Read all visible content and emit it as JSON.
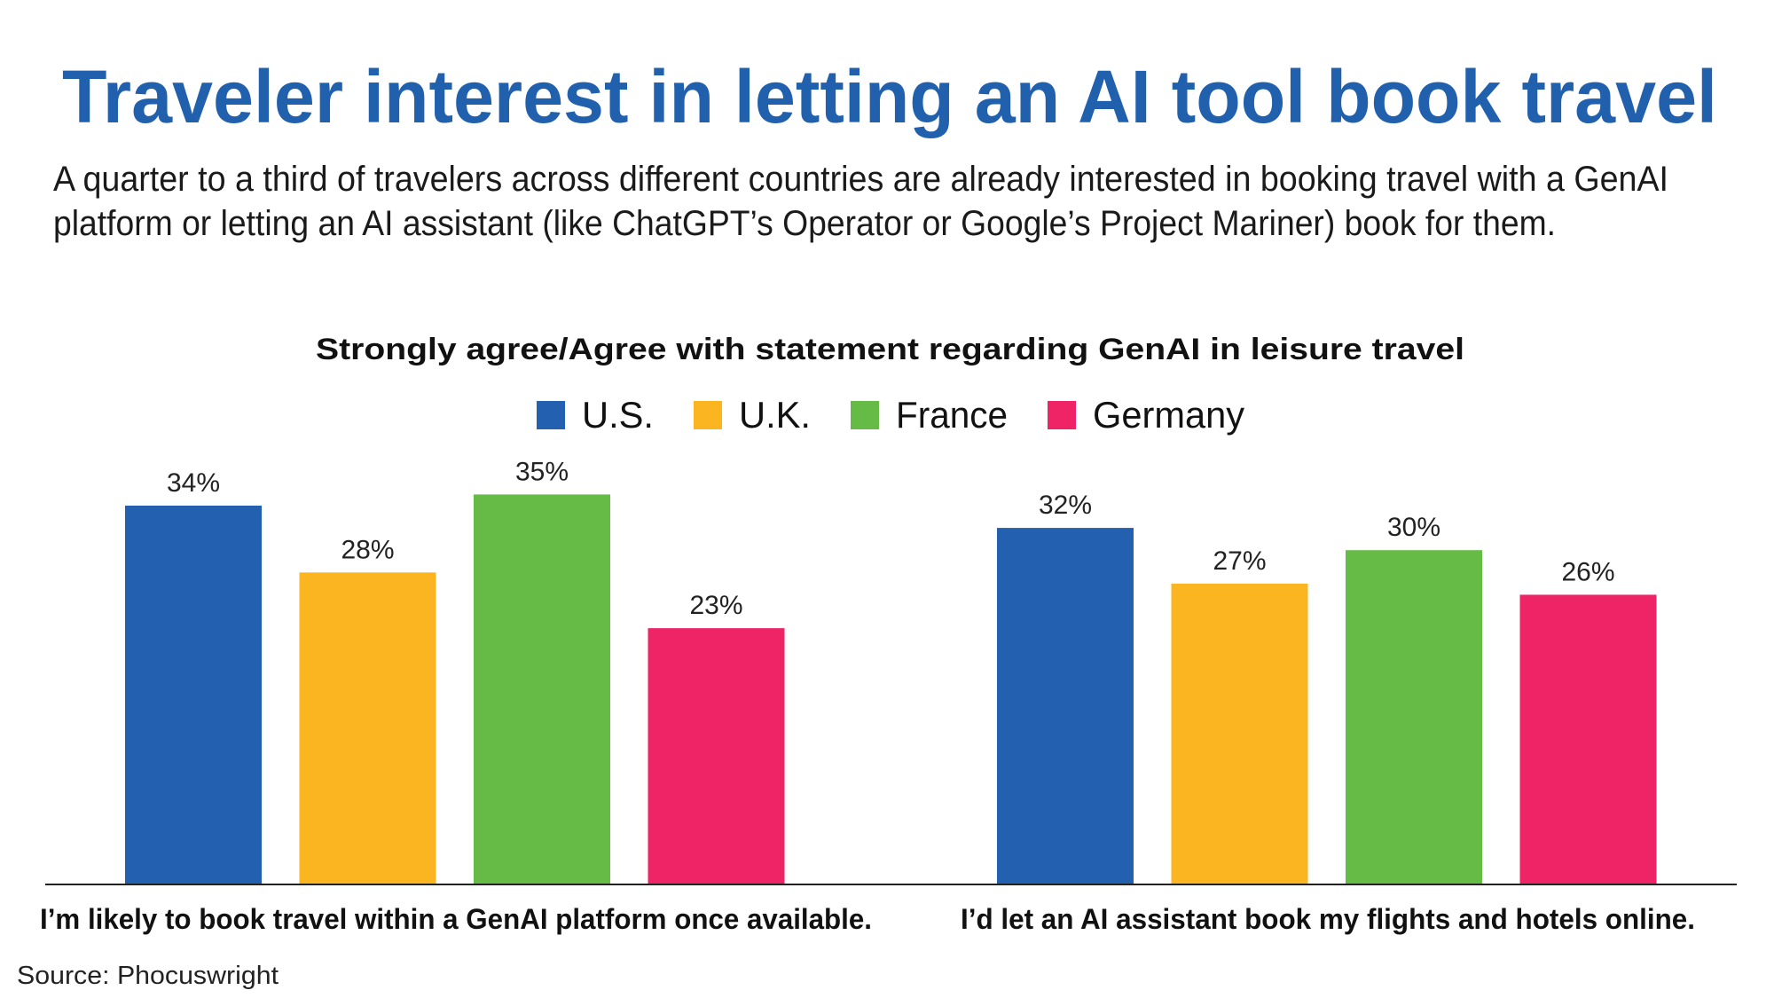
{
  "chart_data": {
    "type": "bar",
    "title": "Traveler interest in letting an AI tool book travel",
    "subtitle": [
      "A quarter to a third of travelers across different countries are already interested in booking travel with a GenAI",
      "platform or letting an AI assistant (like ChatGPT’s Operator or Google’s Project Mariner) book for them."
    ],
    "chart_title": "Strongly agree/Agree with statement regarding GenAI in leisure travel",
    "categories": [
      "I’m likely to book travel within a GenAI platform once available.",
      "I’d let an AI assistant book my flights and hotels online."
    ],
    "series": [
      {
        "name": "U.S.",
        "color": "#2361b0",
        "values": [
          34,
          32
        ],
        "labels": [
          "34%",
          "32%"
        ]
      },
      {
        "name": "U.K.",
        "color": "#fbb521",
        "values": [
          28,
          27
        ],
        "labels": [
          "28%",
          "27%"
        ]
      },
      {
        "name": "France",
        "color": "#66bb46",
        "values": [
          35,
          30
        ],
        "labels": [
          "35%",
          "30%"
        ]
      },
      {
        "name": "Germany",
        "color": "#ee2466",
        "values": [
          23,
          26
        ],
        "labels": [
          "23%",
          "26%"
        ]
      }
    ],
    "xlabel": "",
    "ylabel": "",
    "ylim": [
      0,
      35
    ],
    "grid": false,
    "legend_position": "top-center",
    "source": "Source: Phocuswright",
    "title_color": "#2160ad"
  }
}
